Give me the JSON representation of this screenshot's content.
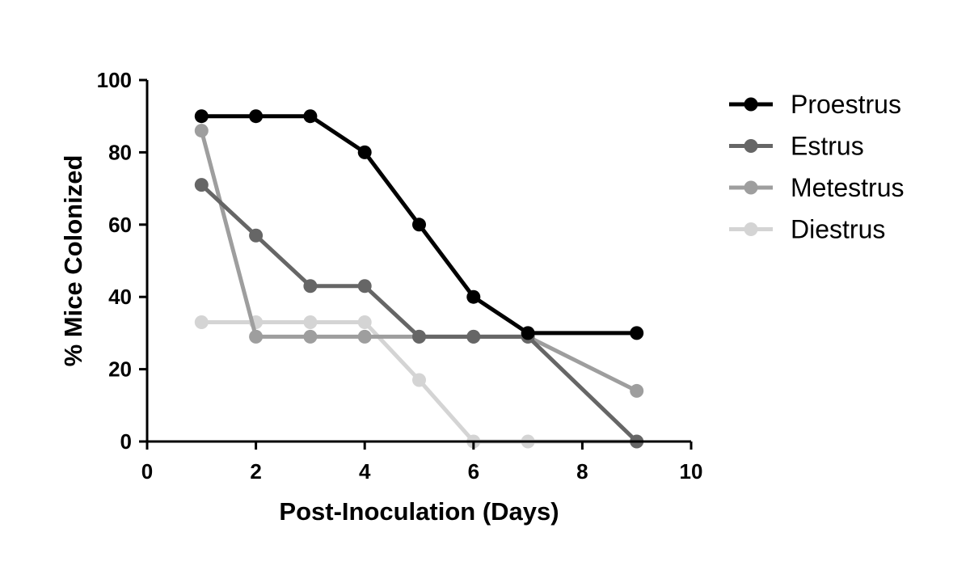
{
  "chart_data": {
    "type": "line",
    "title": "",
    "xlabel": "Post-Inoculation (Days)",
    "ylabel": "% Mice Colonized",
    "xlim": [
      0,
      10
    ],
    "ylim": [
      0,
      100
    ],
    "xticks": [
      0,
      2,
      4,
      6,
      8,
      10
    ],
    "yticks": [
      0,
      20,
      40,
      60,
      80,
      100
    ],
    "grid": false,
    "legend_position": "right",
    "series": [
      {
        "name": "Proestrus",
        "color": "#000000",
        "x": [
          1,
          2,
          3,
          4,
          5,
          6,
          7,
          9
        ],
        "values": [
          90,
          90,
          90,
          80,
          60,
          40,
          30,
          30
        ]
      },
      {
        "name": "Estrus",
        "color": "#666666",
        "x": [
          1,
          2,
          3,
          4,
          5,
          6,
          7,
          9
        ],
        "values": [
          71,
          57,
          43,
          43,
          29,
          29,
          29,
          0
        ]
      },
      {
        "name": "Metestrus",
        "color": "#9e9e9e",
        "x": [
          1,
          2,
          3,
          4,
          5,
          6,
          7,
          9
        ],
        "values": [
          86,
          29,
          29,
          29,
          29,
          29,
          29,
          14
        ]
      },
      {
        "name": "Diestrus",
        "color": "#d4d4d4",
        "x": [
          1,
          2,
          3,
          4,
          5,
          6,
          7,
          9
        ],
        "values": [
          33,
          33,
          33,
          33,
          17,
          0,
          0,
          0
        ]
      }
    ]
  }
}
